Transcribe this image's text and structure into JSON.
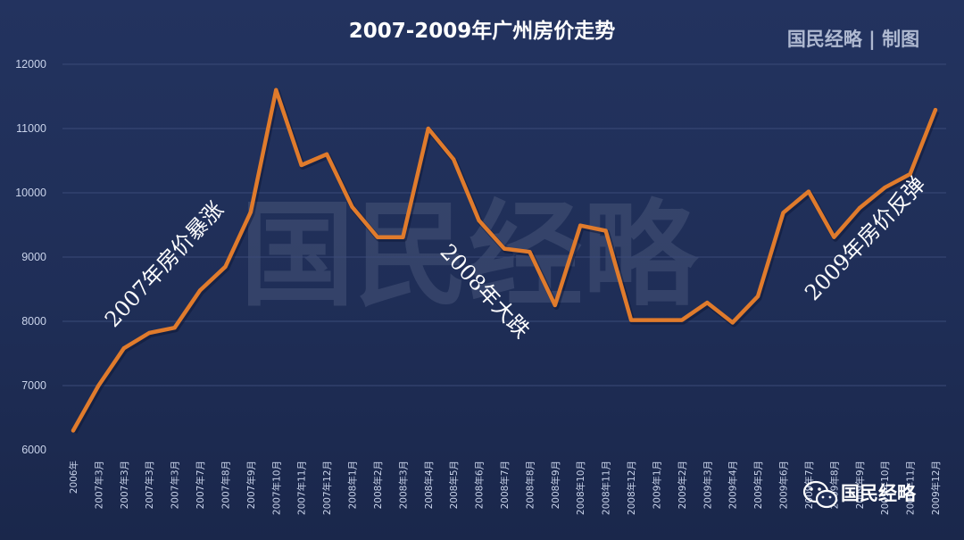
{
  "title": "2007-2009年广州房价走势",
  "brand": "国民经略 | 制图",
  "watermark": "国民经略",
  "badge": {
    "icon": "wechat-icon",
    "text": "国民经略"
  },
  "colors": {
    "line": "#e07b2c",
    "background": "#1f2e57",
    "grid": "#3a4a78"
  },
  "annotations": [
    "2007年房价暴涨",
    "2008年大跌",
    "2009年房价反弹"
  ],
  "chart_data": {
    "type": "line",
    "title": "2007-2009年广州房价走势",
    "ylim": [
      6000,
      12000
    ],
    "yticks": [
      6000,
      7000,
      8000,
      9000,
      10000,
      11000,
      12000
    ],
    "grid": true,
    "categories": [
      "2006年",
      "2007年3月",
      "2007年3月",
      "2007年3月",
      "2007年3月",
      "2007年7月",
      "2007年8月",
      "2007年9月",
      "2007年10月",
      "2007年11月",
      "2007年12月",
      "2008年1月",
      "2008年2月",
      "2008年3月",
      "2008年4月",
      "2008年5月",
      "2008年6月",
      "2008年7月",
      "2008年8月",
      "2008年9月",
      "2008年10月",
      "2008年11月",
      "2008年12月",
      "2009年1月",
      "2009年2月",
      "2009年3月",
      "2009年4月",
      "2009年5月",
      "2009年6月",
      "2009年7月",
      "2009年8月",
      "2009年9月",
      "2009年10月",
      "2009年11月",
      "2009年12月"
    ],
    "series": [
      {
        "values": [
          6300,
          7000,
          7580,
          7820,
          7900,
          8480,
          8850,
          9700,
          11600,
          10430,
          10600,
          9780,
          9310,
          9310,
          11000,
          10520,
          9570,
          9130,
          9080,
          8250,
          9490,
          9410,
          8020,
          8020,
          8020,
          8290,
          7980,
          8390,
          9690,
          10020,
          9310,
          9760,
          10080,
          10290,
          11290
        ]
      }
    ]
  }
}
